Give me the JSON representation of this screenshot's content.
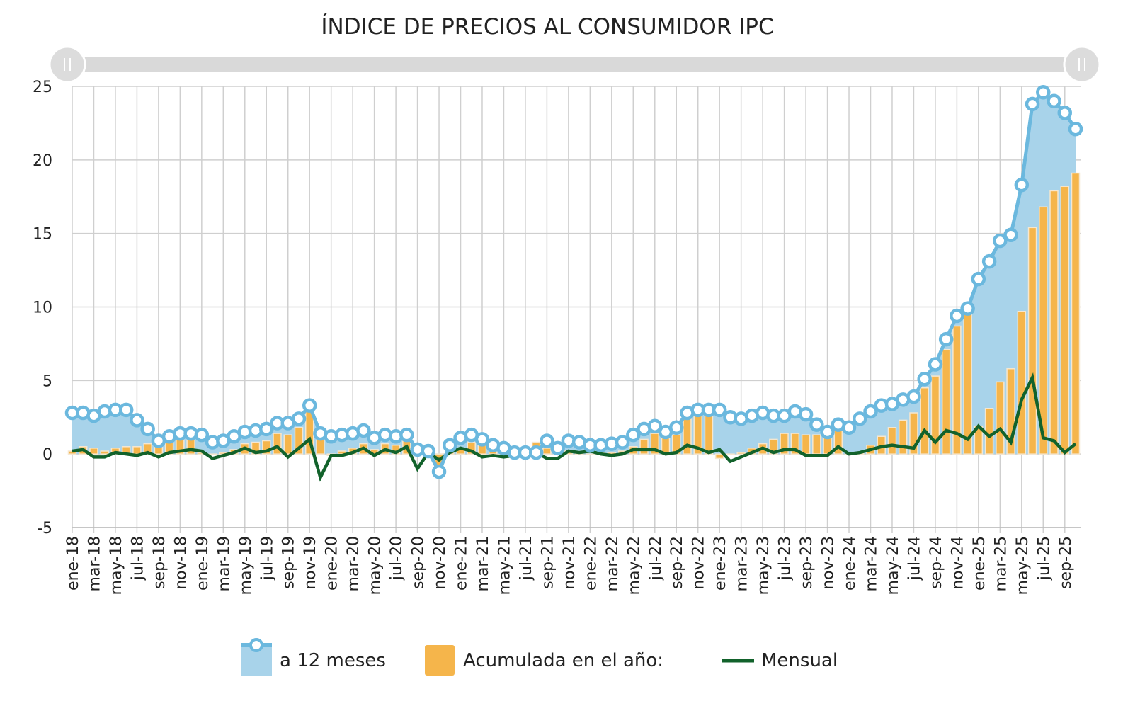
{
  "chart_data": {
    "type": "bar",
    "title": "ÍNDICE DE PRECIOS AL CONSUMIDOR IPC",
    "ylim": [
      -5,
      25
    ],
    "yticks": [
      25,
      20,
      15,
      10,
      5,
      0,
      -5
    ],
    "grid": true,
    "legend_placement": "bottom",
    "categories": [
      "ene-18",
      "feb-18",
      "mar-18",
      "abr-18",
      "may-18",
      "jun-18",
      "jul-18",
      "ago-18",
      "sep-18",
      "oct-18",
      "nov-18",
      "dic-18",
      "ene-19",
      "feb-19",
      "mar-19",
      "abr-19",
      "may-19",
      "jun-19",
      "jul-19",
      "ago-19",
      "sep-19",
      "oct-19",
      "nov-19",
      "dic-19",
      "ene-20",
      "feb-20",
      "mar-20",
      "abr-20",
      "may-20",
      "jun-20",
      "jul-20",
      "ago-20",
      "sep-20",
      "oct-20",
      "nov-20",
      "dic-20",
      "ene-21",
      "feb-21",
      "mar-21",
      "abr-21",
      "may-21",
      "jun-21",
      "jul-21",
      "ago-21",
      "sep-21",
      "oct-21",
      "nov-21",
      "dic-21",
      "ene-22",
      "feb-22",
      "mar-22",
      "abr-22",
      "may-22",
      "jun-22",
      "jul-22",
      "ago-22",
      "sep-22",
      "oct-22",
      "nov-22",
      "dic-22",
      "ene-23",
      "feb-23",
      "mar-23",
      "abr-23",
      "may-23",
      "jun-23",
      "jul-23",
      "ago-23",
      "sep-23",
      "oct-23",
      "nov-23",
      "dic-23",
      "ene-24",
      "feb-24",
      "mar-24",
      "abr-24",
      "may-24",
      "jun-24",
      "jul-24",
      "ago-24",
      "sep-24",
      "oct-24",
      "nov-24",
      "dic-24",
      "ene-25",
      "feb-25",
      "mar-25",
      "abr-25",
      "may-25",
      "jun-25",
      "jul-25",
      "ago-25",
      "sep-25",
      "oct-25"
    ],
    "series": [
      {
        "name": "a 12 meses",
        "type": "area-line",
        "color": "#6BB8DE",
        "fill": "#A8D3EA",
        "values": [
          2.8,
          2.8,
          2.6,
          2.9,
          3.0,
          3.0,
          2.3,
          1.7,
          0.9,
          1.2,
          1.4,
          1.4,
          1.3,
          0.8,
          0.9,
          1.2,
          1.5,
          1.6,
          1.7,
          2.1,
          2.1,
          2.4,
          3.3,
          1.4,
          1.2,
          1.3,
          1.4,
          1.6,
          1.1,
          1.3,
          1.2,
          1.3,
          0.3,
          0.2,
          -1.2,
          0.6,
          1.1,
          1.3,
          1.0,
          0.6,
          0.4,
          0.1,
          0.1,
          0.1,
          0.9,
          0.4,
          0.9,
          0.8,
          0.6,
          0.6,
          0.7,
          0.8,
          1.3,
          1.7,
          1.9,
          1.5,
          1.8,
          2.8,
          3.0,
          3.0,
          3.0,
          2.5,
          2.4,
          2.6,
          2.8,
          2.6,
          2.6,
          2.9,
          2.7,
          2.0,
          1.5,
          2.0,
          1.8,
          2.4,
          2.9,
          3.3,
          3.4,
          3.7,
          3.9,
          5.1,
          6.1,
          7.8,
          9.4,
          9.9,
          11.9,
          13.1,
          14.5,
          14.9,
          18.3,
          23.8,
          24.6,
          24.0,
          23.2,
          22.1
        ]
      },
      {
        "name": "Acumulada en el año:",
        "type": "bar",
        "color": "#F5B54B",
        "values": [
          0.2,
          0.5,
          0.4,
          0.2,
          0.4,
          0.5,
          0.5,
          0.7,
          0.5,
          0.9,
          1.1,
          1.3,
          0.1,
          0.0,
          0.1,
          0.3,
          0.7,
          0.8,
          0.9,
          1.4,
          1.3,
          1.8,
          2.9,
          1.4,
          -0.1,
          0.2,
          0.4,
          0.7,
          0.3,
          0.7,
          0.6,
          0.9,
          0.0,
          0.0,
          -1.0,
          0.3,
          0.4,
          0.8,
          0.6,
          0.4,
          0.2,
          0.0,
          0.0,
          0.8,
          0.4,
          0.1,
          0.2,
          0.1,
          0.0,
          0.1,
          0.1,
          0.2,
          0.5,
          1.0,
          1.4,
          1.1,
          1.3,
          2.4,
          2.9,
          2.9,
          -0.3,
          0.0,
          0.1,
          0.4,
          0.7,
          1.0,
          1.4,
          1.4,
          1.3,
          1.3,
          1.5,
          2.0,
          0.0,
          0.1,
          0.6,
          1.2,
          1.8,
          2.3,
          2.8,
          4.5,
          5.3,
          7.1,
          8.7,
          9.9,
          1.9,
          3.1,
          4.9,
          5.8,
          9.7,
          15.4,
          16.8,
          17.9,
          18.2,
          19.1
        ]
      },
      {
        "name": "Mensual",
        "type": "line",
        "color": "#12622B",
        "values": [
          0.2,
          0.3,
          -0.2,
          -0.2,
          0.1,
          0.0,
          -0.1,
          0.1,
          -0.2,
          0.1,
          0.2,
          0.3,
          0.2,
          -0.3,
          -0.1,
          0.1,
          0.4,
          0.1,
          0.2,
          0.5,
          -0.2,
          0.4,
          1.0,
          -1.6,
          -0.1,
          -0.1,
          0.1,
          0.4,
          -0.1,
          0.3,
          0.1,
          0.5,
          -1.0,
          0.1,
          -0.4,
          0.1,
          0.4,
          0.2,
          -0.2,
          -0.1,
          -0.2,
          -0.1,
          0.0,
          0.1,
          -0.3,
          -0.3,
          0.2,
          0.1,
          0.2,
          0.0,
          -0.1,
          0.0,
          0.3,
          0.3,
          0.3,
          0.0,
          0.1,
          0.6,
          0.4,
          0.1,
          0.3,
          -0.5,
          -0.2,
          0.1,
          0.4,
          0.1,
          0.3,
          0.3,
          -0.1,
          -0.1,
          -0.1,
          0.5,
          0.0,
          0.1,
          0.3,
          0.5,
          0.6,
          0.5,
          0.4,
          1.6,
          0.8,
          1.6,
          1.4,
          1.0,
          1.9,
          1.2,
          1.7,
          0.8,
          3.7,
          5.2,
          1.1,
          0.9,
          0.1,
          0.7
        ]
      }
    ]
  }
}
